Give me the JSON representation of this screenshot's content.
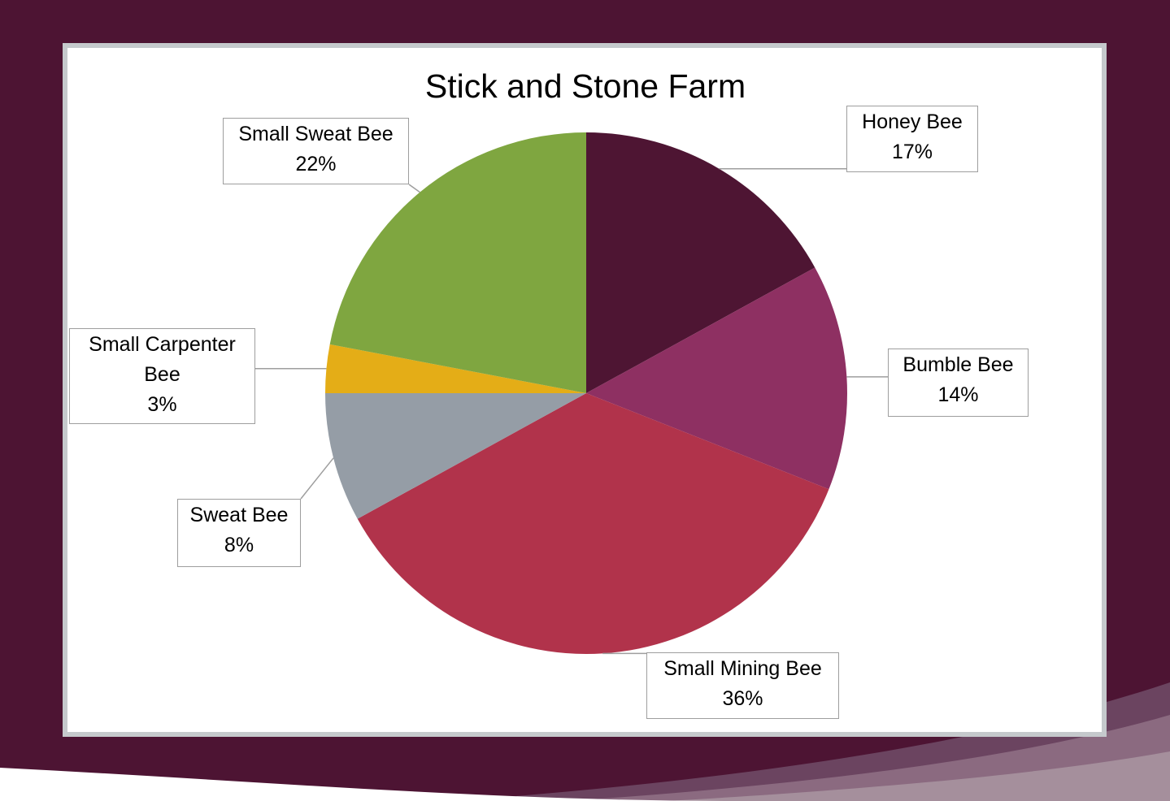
{
  "slide": {
    "background_color": "#4d1433",
    "swoosh_colors": [
      "#6b4460",
      "#8b6a80",
      "#a58f9c"
    ]
  },
  "chart_data": {
    "type": "pie",
    "title": "Stick and Stone Farm",
    "slices": [
      {
        "name": "Honey Bee",
        "label": [
          "Honey Bee",
          "17%"
        ],
        "value": 17,
        "color": "#4e1533"
      },
      {
        "name": "Bumble Bee",
        "label": [
          "Bumble Bee",
          "14%"
        ],
        "value": 14,
        "color": "#8e3062"
      },
      {
        "name": "Small Mining Bee",
        "label": [
          "Small Mining Bee",
          "36%"
        ],
        "value": 36,
        "color": "#b1334b"
      },
      {
        "name": "Sweat Bee",
        "label": [
          "Sweat Bee",
          "8%"
        ],
        "value": 8,
        "color": "#959da6"
      },
      {
        "name": "Small Carpenter Bee",
        "label": [
          "Small Carpenter",
          "Bee",
          "3%"
        ],
        "value": 3,
        "color": "#e4ad17"
      },
      {
        "name": "Small Sweat Bee",
        "label": [
          "Small Sweat Bee",
          "22%"
        ],
        "value": 22,
        "color": "#7fa640"
      }
    ],
    "start_angle_deg": 0,
    "direction": "clockwise",
    "legend": "none",
    "data_labels": "callouts"
  }
}
